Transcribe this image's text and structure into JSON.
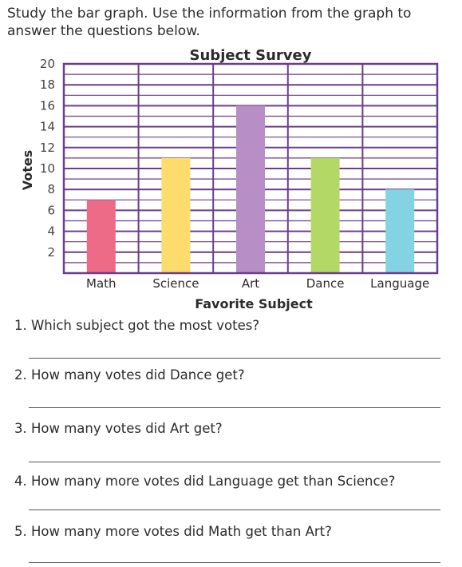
{
  "instructions": "Study the bar graph. Use the information from the graph to answer the questions below.",
  "chart_data": {
    "type": "bar",
    "title": "Subject Survey",
    "xlabel": "Favorite Subject",
    "ylabel": "Votes",
    "categories": [
      "Math",
      "Science",
      "Art",
      "Dance",
      "Language"
    ],
    "values": [
      7,
      11,
      16,
      11,
      8
    ],
    "colors": [
      "#ee6b88",
      "#fddc6e",
      "#b88ec6",
      "#b4d866",
      "#84d3e2"
    ],
    "ylim": [
      0,
      20
    ],
    "yticks": [
      2,
      4,
      6,
      8,
      10,
      12,
      14,
      16,
      18,
      20
    ],
    "grid": true,
    "grid_color": "#6a3d8a"
  },
  "questions": [
    "1. Which subject got the most votes?",
    "2. How many votes did Dance get?",
    "3. How many votes did Art get?",
    "4. How many more votes did Language get than Science?",
    "5. How many more votes did Math get than Art?"
  ]
}
